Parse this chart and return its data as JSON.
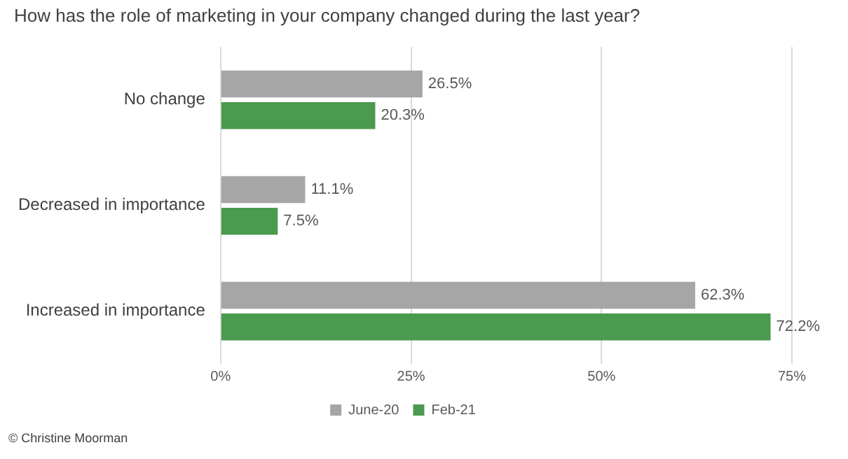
{
  "chart_data": {
    "type": "bar",
    "orientation": "horizontal",
    "title": "How has the role of marketing in your company changed during the last year?",
    "categories": [
      "No change",
      "Decreased in importance",
      "Increased in importance"
    ],
    "series": [
      {
        "name": "June-20",
        "color": "#a6a6a6",
        "values": [
          26.5,
          11.1,
          62.3
        ],
        "value_labels": [
          "26.5%",
          "11.1%",
          "62.3%"
        ]
      },
      {
        "name": "Feb-21",
        "color": "#4a9a4f",
        "values": [
          20.3,
          7.5,
          72.2
        ],
        "value_labels": [
          "20.3%",
          "7.5%",
          "72.2%"
        ]
      }
    ],
    "xlim": [
      0,
      75
    ],
    "xticks": [
      {
        "value": 0,
        "label": "0%"
      },
      {
        "value": 25,
        "label": "25%"
      },
      {
        "value": 50,
        "label": "50%"
      },
      {
        "value": 75,
        "label": "75%"
      }
    ],
    "grid": "x",
    "legend": "bottom",
    "annotations": [
      "© Christine Moorman"
    ]
  }
}
